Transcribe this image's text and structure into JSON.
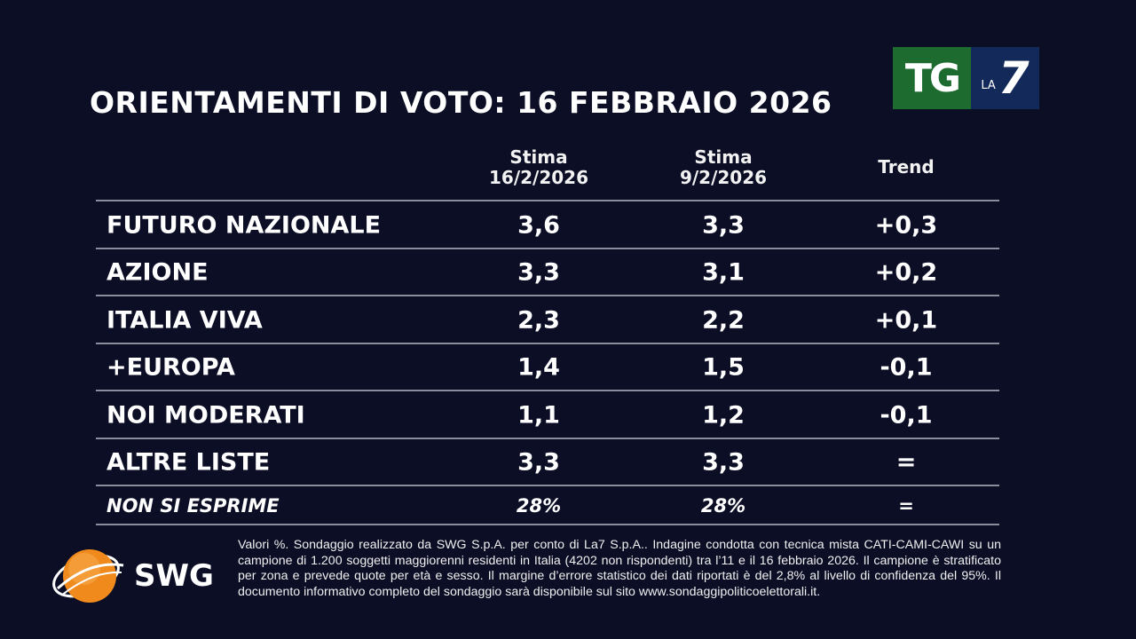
{
  "title": "ORIENTAMENTI DI VOTO: 16 FEBBRAIO 2026",
  "logo": {
    "tg": "TG",
    "la": "LA",
    "seven": "7",
    "colors": {
      "green": "#1d6b2f",
      "blue": "#13295a"
    }
  },
  "chart_data": {
    "type": "table",
    "columns": [
      {
        "line1": "Stima",
        "line2": "16/2/2026"
      },
      {
        "line1": "Stima",
        "line2": "9/2/2026"
      },
      {
        "line1": "Trend",
        "line2": ""
      }
    ],
    "rows": [
      {
        "party": "FUTURO NAZIONALE",
        "current": "3,6",
        "previous": "3,3",
        "trend": "+0,3"
      },
      {
        "party": "AZIONE",
        "current": "3,3",
        "previous": "3,1",
        "trend": "+0,2"
      },
      {
        "party": "ITALIA VIVA",
        "current": "2,3",
        "previous": "2,2",
        "trend": "+0,1"
      },
      {
        "party": "+EUROPA",
        "current": "1,4",
        "previous": "1,5",
        "trend": "-0,1"
      },
      {
        "party": "NOI MODERATI",
        "current": "1,1",
        "previous": "1,2",
        "trend": "-0,1"
      },
      {
        "party": "ALTRE LISTE",
        "current": "3,3",
        "previous": "3,3",
        "trend": "="
      },
      {
        "party": "NON SI ESPRIME",
        "current": "28%",
        "previous": "28%",
        "trend": "="
      }
    ]
  },
  "footnote": "Valori %. Sondaggio realizzato da SWG S.p.A. per conto di La7 S.p.A.. Indagine condotta con tecnica mista CATI-CAMI-CAWI su un campione di 1.200 soggetti maggiorenni residenti in Italia (4202 non rispondenti) tra l’11 e il 16 febbraio 2026. Il campione è stratificato per zona e prevede quote per età e sesso. Il margine d’errore statistico dei dati riportati è del 2,8% al livello di confidenza del 95%. Il documento informativo completo del sondaggio sarà disponibile sul sito www.sondaggipoliticoelettorali.it.",
  "swg_logo": "SWG"
}
